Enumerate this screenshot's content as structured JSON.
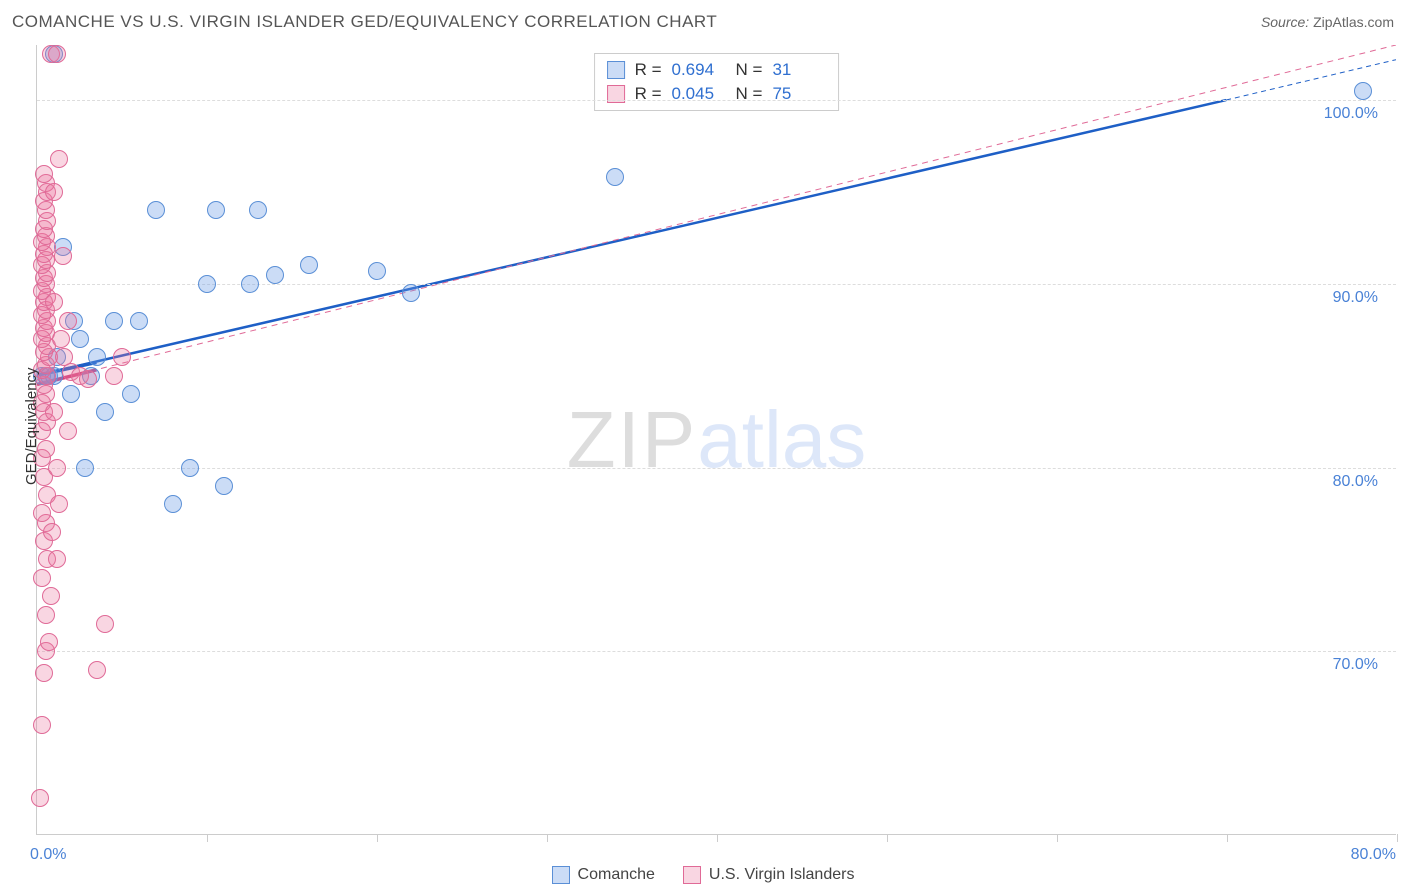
{
  "header": {
    "title": "COMANCHE VS U.S. VIRGIN ISLANDER GED/EQUIVALENCY CORRELATION CHART",
    "source_label": "Source:",
    "source_value": "ZipAtlas.com"
  },
  "chart": {
    "y_axis_label": "GED/Equivalency",
    "x_extent_min_label": "0.0%",
    "x_extent_max_label": "80.0%",
    "xlim": [
      0,
      80
    ],
    "ylim": [
      60,
      103
    ],
    "x_ticks": [
      0,
      10,
      20,
      30,
      40,
      50,
      60,
      70,
      80
    ],
    "y_ticks": [
      {
        "v": 70,
        "label": "70.0%"
      },
      {
        "v": 80,
        "label": "80.0%"
      },
      {
        "v": 90,
        "label": "90.0%"
      },
      {
        "v": 100,
        "label": "100.0%"
      }
    ],
    "grid_color": "#dddddd",
    "background_color": "#ffffff",
    "marker_radius": 9,
    "marker_stroke_width": 1.2,
    "series": [
      {
        "key": "comanche",
        "label": "Comanche",
        "fill": "rgba(106,156,228,0.35)",
        "stroke": "#5a8fd6",
        "points": [
          [
            0.3,
            85
          ],
          [
            0.5,
            85
          ],
          [
            0.7,
            85
          ],
          [
            1.0,
            85
          ],
          [
            1.2,
            86
          ],
          [
            1.5,
            92
          ],
          [
            2.0,
            84
          ],
          [
            2.2,
            88
          ],
          [
            2.5,
            87
          ],
          [
            2.8,
            80
          ],
          [
            3.2,
            85
          ],
          [
            3.5,
            86
          ],
          [
            4.0,
            83
          ],
          [
            4.5,
            88
          ],
          [
            5.5,
            84
          ],
          [
            6.0,
            88
          ],
          [
            7.0,
            94
          ],
          [
            8.0,
            78
          ],
          [
            9.0,
            80
          ],
          [
            10.0,
            90
          ],
          [
            10.5,
            94
          ],
          [
            11.0,
            79
          ],
          [
            12.5,
            90
          ],
          [
            14.0,
            90.5
          ],
          [
            13.0,
            94
          ],
          [
            16.0,
            91
          ],
          [
            20.0,
            90.7
          ],
          [
            22.0,
            89.5
          ],
          [
            34.0,
            95.8
          ],
          [
            78.0,
            100.5
          ],
          [
            1.0,
            102.5
          ]
        ],
        "trend": {
          "x1": 0,
          "y1": 85,
          "x2": 70,
          "y2": 100,
          "color": "#1e5fc6",
          "width": 2.5,
          "dash": "none"
        },
        "trend_ext": {
          "x1": 70,
          "y1": 100,
          "x2": 80,
          "y2": 102.2,
          "color": "#1e5fc6",
          "width": 1,
          "dash": "5,4"
        },
        "trend_solid_short": {
          "x1": 0,
          "y1": 85,
          "x2": 3.5,
          "y2": 85.7,
          "color": "#1e5fc6",
          "width": 3.5
        }
      },
      {
        "key": "usvi",
        "label": "U.S. Virgin Islanders",
        "fill": "rgba(235,120,160,0.30)",
        "stroke": "#e06a97",
        "points": [
          [
            0.2,
            62
          ],
          [
            0.3,
            66
          ],
          [
            0.4,
            68.8
          ],
          [
            0.5,
            70
          ],
          [
            0.5,
            72
          ],
          [
            0.3,
            74
          ],
          [
            0.6,
            75
          ],
          [
            0.4,
            76
          ],
          [
            0.5,
            77
          ],
          [
            0.3,
            77.5
          ],
          [
            0.6,
            78.5
          ],
          [
            0.4,
            79.5
          ],
          [
            0.3,
            80.5
          ],
          [
            0.5,
            81
          ],
          [
            0.3,
            82
          ],
          [
            0.6,
            82.5
          ],
          [
            0.4,
            83
          ],
          [
            0.3,
            83.5
          ],
          [
            0.5,
            84
          ],
          [
            0.4,
            84.5
          ],
          [
            0.6,
            85
          ],
          [
            0.3,
            85.3
          ],
          [
            0.5,
            85.6
          ],
          [
            0.7,
            86
          ],
          [
            0.4,
            86.3
          ],
          [
            0.6,
            86.6
          ],
          [
            0.3,
            87
          ],
          [
            0.5,
            87.3
          ],
          [
            0.4,
            87.6
          ],
          [
            0.6,
            88
          ],
          [
            0.3,
            88.3
          ],
          [
            0.5,
            88.6
          ],
          [
            0.4,
            89
          ],
          [
            0.6,
            89.3
          ],
          [
            0.3,
            89.6
          ],
          [
            0.5,
            90
          ],
          [
            0.4,
            90.3
          ],
          [
            0.6,
            90.6
          ],
          [
            0.3,
            91
          ],
          [
            0.5,
            91.3
          ],
          [
            0.4,
            91.6
          ],
          [
            0.6,
            92
          ],
          [
            0.3,
            92.3
          ],
          [
            0.5,
            92.6
          ],
          [
            0.4,
            93
          ],
          [
            0.6,
            93.4
          ],
          [
            0.5,
            94
          ],
          [
            0.4,
            94.5
          ],
          [
            0.6,
            95
          ],
          [
            0.5,
            95.5
          ],
          [
            0.4,
            96
          ],
          [
            0.8,
            102.5
          ],
          [
            1.2,
            102.5
          ],
          [
            1.0,
            95
          ],
          [
            1.5,
            91.5
          ],
          [
            1.8,
            82
          ],
          [
            1.2,
            75
          ],
          [
            2.0,
            85.2
          ],
          [
            2.5,
            85
          ],
          [
            3.0,
            84.8
          ],
          [
            1.3,
            96.8
          ],
          [
            1.0,
            89
          ],
          [
            1.4,
            87
          ],
          [
            1.6,
            86
          ],
          [
            1.8,
            88
          ],
          [
            1.0,
            83
          ],
          [
            1.2,
            80
          ],
          [
            1.3,
            78
          ],
          [
            0.9,
            76.5
          ],
          [
            0.8,
            73
          ],
          [
            0.7,
            70.5
          ],
          [
            4.0,
            71.5
          ],
          [
            3.5,
            69
          ],
          [
            4.5,
            85
          ],
          [
            5.0,
            86
          ]
        ],
        "trend": {
          "x1": 0,
          "y1": 84.5,
          "x2": 80,
          "y2": 103,
          "color": "#e06a97",
          "width": 1,
          "dash": "6,5"
        },
        "trend_solid_short": {
          "x1": 0,
          "y1": 84.5,
          "x2": 3.5,
          "y2": 85.3,
          "color": "#d23f7a",
          "width": 3.5
        }
      }
    ],
    "stat_box": {
      "rows": [
        {
          "swatch_fill": "rgba(106,156,228,0.35)",
          "swatch_stroke": "#5a8fd6",
          "r_label": "R =",
          "r": "0.694",
          "n_label": "N =",
          "n": "31"
        },
        {
          "swatch_fill": "rgba(235,120,160,0.30)",
          "swatch_stroke": "#e06a97",
          "r_label": "R =",
          "r": "0.045",
          "n_label": "N =",
          "n": "75"
        }
      ]
    }
  },
  "legend": {
    "items": [
      {
        "label": "Comanche",
        "fill": "rgba(106,156,228,0.35)",
        "stroke": "#5a8fd6"
      },
      {
        "label": "U.S. Virgin Islanders",
        "fill": "rgba(235,120,160,0.30)",
        "stroke": "#e06a97"
      }
    ]
  },
  "watermark": {
    "part1": "ZIP",
    "part2": "atlas"
  }
}
